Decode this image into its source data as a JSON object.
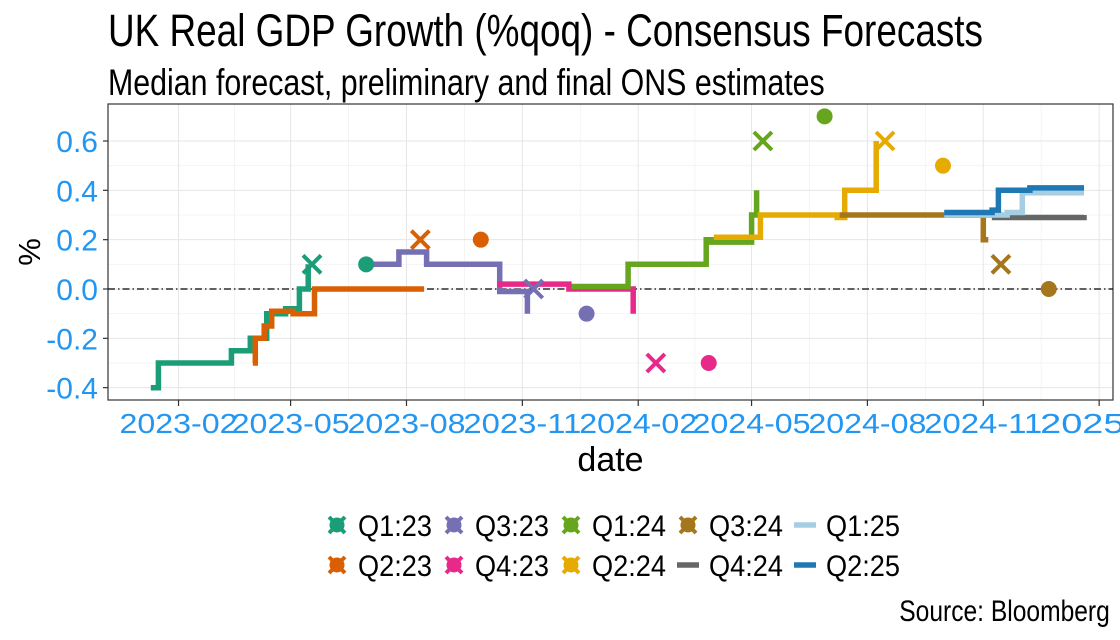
{
  "title": "UK Real GDP Growth (%qoq) - Consensus Forecasts",
  "subtitle": "Median forecast, preliminary and final ONS estimates",
  "source": "Source: Bloomberg",
  "chart_data": {
    "type": "line",
    "xlabel": "date",
    "ylabel": "%",
    "xlim": [
      "2022-12-07",
      "2025-02-12"
    ],
    "ylim": [
      -0.45,
      0.75
    ],
    "x_ticks": [
      "2023-02-01",
      "2023-05-01",
      "2023-08-01",
      "2023-11-01",
      "2024-02-01",
      "2024-05-01",
      "2024-08-01",
      "2024-11-01",
      "2025-02-01"
    ],
    "x_tick_labels": [
      "2023-02",
      "2023-05",
      "2023-08",
      "2023-11",
      "2024-02",
      "2024-05",
      "2024-08",
      "2024-11",
      "2025-0"
    ],
    "y_ticks": [
      -0.4,
      -0.2,
      0.0,
      0.2,
      0.4,
      0.6
    ],
    "y_tick_labels": [
      "-0.4",
      "-0.2",
      "0.0",
      "0.2",
      "0.4",
      "0.6"
    ],
    "zero_line": true,
    "grid": true,
    "legend_position": "bottom",
    "tick_label_color": "#2196f3",
    "series": [
      {
        "name": "Q1:23",
        "color": "#1b9e77",
        "forecast": [
          [
            "2023-01-10",
            -0.4
          ],
          [
            "2023-01-16",
            -0.3
          ],
          [
            "2023-03-15",
            -0.25
          ],
          [
            "2023-03-30",
            -0.2
          ],
          [
            "2023-04-12",
            -0.1
          ],
          [
            "2023-04-27",
            -0.08
          ],
          [
            "2023-05-08",
            0.0
          ],
          [
            "2023-05-15",
            0.1
          ]
        ],
        "markers": [
          {
            "date": "2023-05-18",
            "value": 0.1,
            "shape": "cross"
          },
          {
            "date": "2023-06-30",
            "value": 0.1,
            "shape": "dot"
          }
        ]
      },
      {
        "name": "Q2:23",
        "color": "#d95f02",
        "forecast": [
          [
            "2023-04-01",
            -0.3
          ],
          [
            "2023-04-03",
            -0.2
          ],
          [
            "2023-04-10",
            -0.15
          ],
          [
            "2023-04-16",
            -0.09
          ],
          [
            "2023-05-03",
            -0.1
          ],
          [
            "2023-05-20",
            0.0
          ],
          [
            "2023-08-15",
            0.0
          ]
        ],
        "markers": [
          {
            "date": "2023-08-12",
            "value": 0.2,
            "shape": "cross"
          },
          {
            "date": "2023-09-29",
            "value": 0.2,
            "shape": "dot"
          }
        ]
      },
      {
        "name": "Q3:23",
        "color": "#7570b3",
        "forecast": [
          [
            "2023-07-01",
            0.1
          ],
          [
            "2023-07-26",
            0.15
          ],
          [
            "2023-08-17",
            0.1
          ],
          [
            "2023-10-10",
            0.1
          ],
          [
            "2023-10-14",
            -0.01
          ],
          [
            "2023-11-05",
            -0.1
          ]
        ],
        "markers": [
          {
            "date": "2023-11-10",
            "value": 0.0,
            "shape": "cross"
          },
          {
            "date": "2023-12-22",
            "value": -0.1,
            "shape": "dot"
          }
        ]
      },
      {
        "name": "Q4:23",
        "color": "#e7298a",
        "forecast": [
          [
            "2023-10-12",
            0.02
          ],
          [
            "2023-12-08",
            0.0
          ],
          [
            "2024-01-15",
            0.0
          ],
          [
            "2024-01-28",
            -0.1
          ]
        ],
        "markers": [
          {
            "date": "2024-02-15",
            "value": -0.3,
            "shape": "cross"
          },
          {
            "date": "2024-03-28",
            "value": -0.3,
            "shape": "dot"
          }
        ]
      },
      {
        "name": "Q1:24",
        "color": "#66a61e",
        "forecast": [
          [
            "2023-12-10",
            0.01
          ],
          [
            "2024-01-24",
            0.1
          ],
          [
            "2024-03-26",
            0.2
          ],
          [
            "2024-03-30",
            0.19
          ],
          [
            "2024-05-01",
            0.3
          ],
          [
            "2024-05-05",
            0.4
          ]
        ],
        "markers": [
          {
            "date": "2024-05-10",
            "value": 0.6,
            "shape": "cross"
          },
          {
            "date": "2024-06-28",
            "value": 0.7,
            "shape": "dot"
          }
        ]
      },
      {
        "name": "Q2:24",
        "color": "#e6ab02",
        "forecast": [
          [
            "2024-04-01",
            0.21
          ],
          [
            "2024-05-08",
            0.3
          ],
          [
            "2024-07-08",
            0.29
          ],
          [
            "2024-07-14",
            0.4
          ],
          [
            "2024-08-08",
            0.6
          ]
        ],
        "markers": [
          {
            "date": "2024-08-15",
            "value": 0.6,
            "shape": "cross"
          },
          {
            "date": "2024-09-30",
            "value": 0.5,
            "shape": "dot"
          }
        ]
      },
      {
        "name": "Q3:24",
        "color": "#a6761d",
        "forecast": [
          [
            "2024-07-10",
            0.3
          ],
          [
            "2024-10-15",
            0.3
          ],
          [
            "2024-11-01",
            0.2
          ],
          [
            "2024-11-05",
            0.2
          ]
        ],
        "markers": [
          {
            "date": "2024-11-15",
            "value": 0.1,
            "shape": "cross"
          },
          {
            "date": "2024-12-23",
            "value": 0.0,
            "shape": "dot"
          }
        ]
      },
      {
        "name": "Q4:24",
        "color": "#666666",
        "forecast": [
          [
            "2024-10-01",
            0.3
          ],
          [
            "2024-11-10",
            0.29
          ],
          [
            "2025-01-20",
            0.3
          ]
        ],
        "markers": []
      },
      {
        "name": "Q1:25",
        "color": "#a6cee3",
        "forecast": [
          [
            "2024-10-01",
            0.3
          ],
          [
            "2024-11-20",
            0.31
          ],
          [
            "2024-12-02",
            0.39
          ],
          [
            "2025-01-20",
            0.39
          ]
        ],
        "markers": []
      },
      {
        "name": "Q2:25",
        "color": "#1f78b4",
        "forecast": [
          [
            "2024-10-01",
            0.31
          ],
          [
            "2024-11-08",
            0.32
          ],
          [
            "2024-11-13",
            0.4
          ],
          [
            "2024-12-08",
            0.41
          ],
          [
            "2025-01-20",
            0.41
          ]
        ],
        "markers": []
      }
    ]
  }
}
